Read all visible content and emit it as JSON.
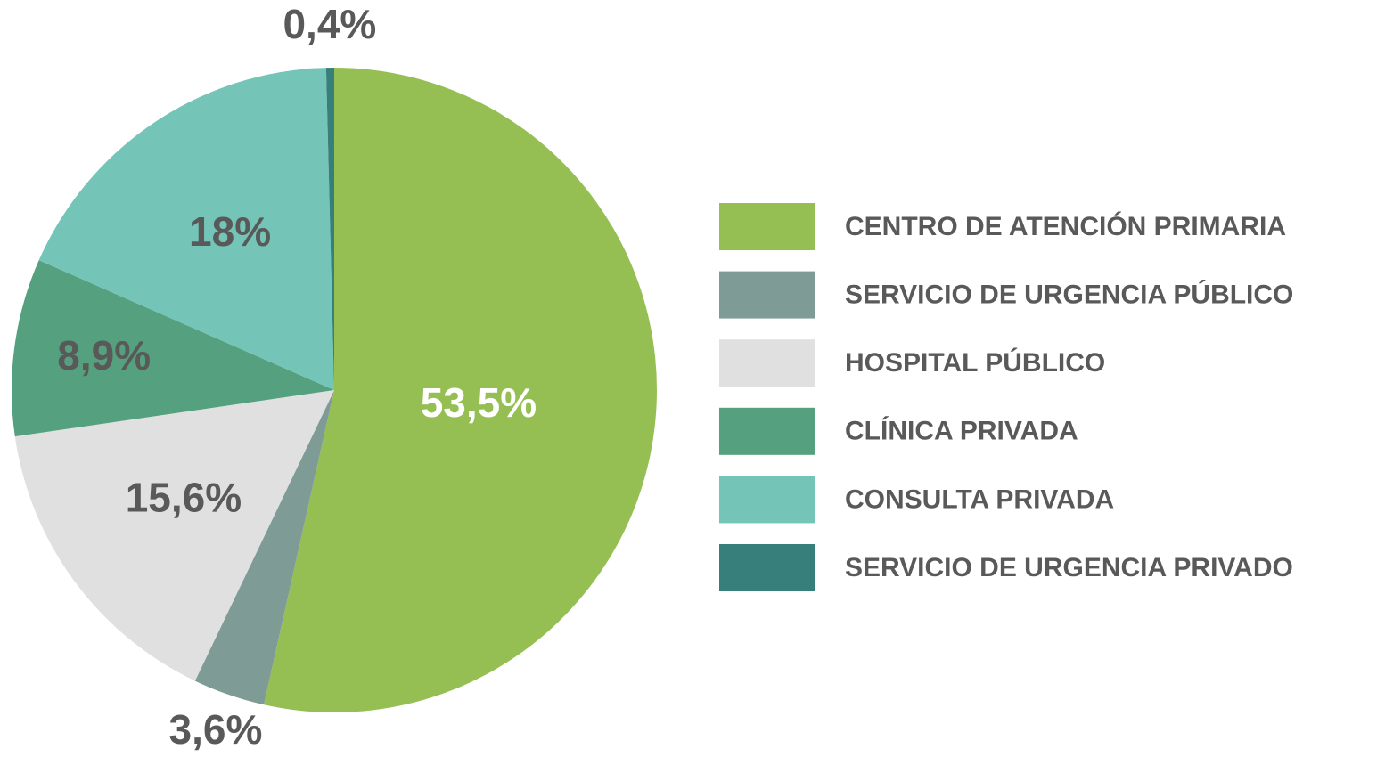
{
  "chart_data": {
    "type": "pie",
    "categories": [
      "CENTRO DE ATENCIÓN PRIMARIA",
      "SERVICIO DE URGENCIA PÚBLICO",
      "HOSPITAL PÚBLICO",
      "CLÍNICA PRIVADA",
      "CONSULTA PRIVADA",
      "SERVICIO DE URGENCIA PRIVADO"
    ],
    "values": [
      53.5,
      3.6,
      15.6,
      8.9,
      18,
      0.4
    ],
    "value_labels": [
      "53,5%",
      "3,6%",
      "15,6%",
      "8,9%",
      "18%",
      "0,4%"
    ],
    "colors": [
      "#96bf53",
      "#7f9b96",
      "#e0e0e0",
      "#55a07e",
      "#74c5b8",
      "#367f7b"
    ],
    "legend": "right"
  }
}
